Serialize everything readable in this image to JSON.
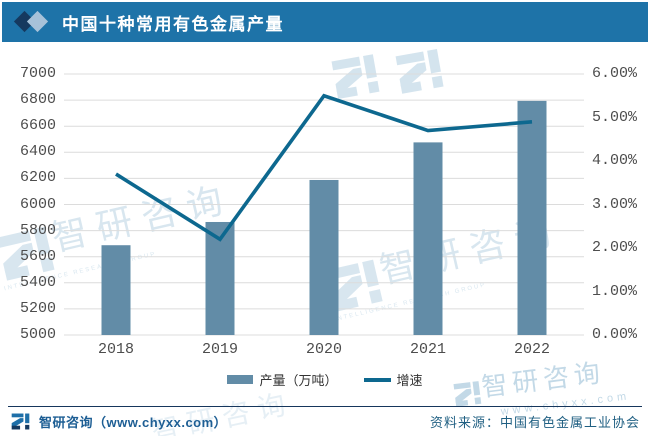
{
  "header": {
    "title": "中国十种常用有色金属产量"
  },
  "chart_data": {
    "type": "bar+line",
    "title": "中国十种常用有色金属产量",
    "categories": [
      "2018",
      "2019",
      "2020",
      "2021",
      "2022"
    ],
    "series": [
      {
        "name": "产量（万吨）",
        "type": "bar",
        "axis": "left",
        "values": [
          5688,
          5866,
          6188,
          6476,
          6794
        ]
      },
      {
        "name": "增速",
        "type": "line",
        "axis": "right",
        "unit": "%",
        "values": [
          3.7,
          2.2,
          5.5,
          4.7,
          4.9
        ]
      }
    ],
    "left_axis": {
      "min": 5000,
      "max": 7000,
      "step": 200,
      "ticks": [
        "7000",
        "6800",
        "6600",
        "6400",
        "6200",
        "6000",
        "5800",
        "5600",
        "5400",
        "5200",
        "5000"
      ]
    },
    "right_axis": {
      "min": 0,
      "max": 6,
      "step": 1,
      "ticks": [
        "6.00%",
        "5.00%",
        "4.00%",
        "3.00%",
        "2.00%",
        "1.00%",
        "0.00%"
      ]
    },
    "grid": true,
    "legend_position": "bottom"
  },
  "footer": {
    "brand": "智研咨询（www.chyxx.com）",
    "source": "资料来源：中国有色金属工业协会"
  },
  "watermark": {
    "brand": "智研咨询",
    "url": "www.chyxx.com",
    "group": "INTELLIGENCE RESEARCH GROUP"
  },
  "colors": {
    "header_bg": "#1E73A8",
    "diamond_dark": "#15395F",
    "diamond_light": "#A7C2D9",
    "bar": "#628CA7",
    "line": "#0D688F",
    "grid": "#DCDCDC",
    "axis_text": "#4D4D4D",
    "footer_brand": "#1D5E94",
    "footer_source": "#1F5F82",
    "watermark": "#B9D3E3"
  }
}
